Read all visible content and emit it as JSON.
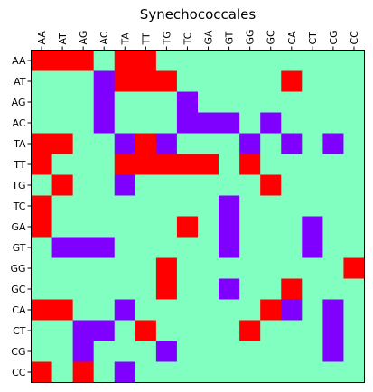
{
  "chart_data": {
    "type": "heatmap",
    "title": "Synechococcales",
    "x_categories": [
      "AA",
      "AT",
      "AG",
      "AC",
      "TA",
      "TT",
      "TG",
      "TC",
      "GA",
      "GT",
      "GG",
      "GC",
      "CA",
      "CT",
      "CG",
      "CC"
    ],
    "y_categories": [
      "AA",
      "AT",
      "AG",
      "AC",
      "TA",
      "TT",
      "TG",
      "TC",
      "GA",
      "GT",
      "GG",
      "GC",
      "CA",
      "CT",
      "CG",
      "CC"
    ],
    "palette": {
      "0": "#80FFC0",
      "1": "#FF0000",
      "2": "#8000FF"
    },
    "x_tick_position": "top",
    "grid": false,
    "values": [
      [
        1,
        1,
        1,
        0,
        1,
        1,
        0,
        0,
        0,
        0,
        0,
        0,
        0,
        0,
        0,
        0
      ],
      [
        0,
        0,
        0,
        2,
        1,
        1,
        1,
        0,
        0,
        0,
        0,
        0,
        1,
        0,
        0,
        0
      ],
      [
        0,
        0,
        0,
        2,
        0,
        0,
        0,
        2,
        0,
        0,
        0,
        0,
        0,
        0,
        0,
        0
      ],
      [
        0,
        0,
        0,
        2,
        0,
        0,
        0,
        2,
        2,
        2,
        0,
        2,
        0,
        0,
        0,
        0
      ],
      [
        1,
        1,
        0,
        0,
        2,
        1,
        2,
        0,
        0,
        0,
        2,
        0,
        2,
        0,
        2,
        0
      ],
      [
        1,
        0,
        0,
        0,
        1,
        1,
        1,
        1,
        1,
        0,
        1,
        0,
        0,
        0,
        0,
        0
      ],
      [
        0,
        1,
        0,
        0,
        2,
        0,
        0,
        0,
        0,
        0,
        0,
        1,
        0,
        0,
        0,
        0
      ],
      [
        1,
        0,
        0,
        0,
        0,
        0,
        0,
        0,
        0,
        2,
        0,
        0,
        0,
        0,
        0,
        0
      ],
      [
        1,
        0,
        0,
        0,
        0,
        0,
        0,
        1,
        0,
        2,
        0,
        0,
        0,
        2,
        0,
        0
      ],
      [
        0,
        2,
        2,
        2,
        0,
        0,
        0,
        0,
        0,
        2,
        0,
        0,
        0,
        2,
        0,
        0
      ],
      [
        0,
        0,
        0,
        0,
        0,
        0,
        1,
        0,
        0,
        0,
        0,
        0,
        0,
        0,
        0,
        1
      ],
      [
        0,
        0,
        0,
        0,
        0,
        0,
        1,
        0,
        0,
        2,
        0,
        0,
        1,
        0,
        0,
        0
      ],
      [
        1,
        1,
        0,
        0,
        2,
        0,
        0,
        0,
        0,
        0,
        0,
        1,
        2,
        0,
        2,
        0
      ],
      [
        0,
        0,
        2,
        2,
        0,
        1,
        0,
        0,
        0,
        0,
        1,
        0,
        0,
        0,
        2,
        0
      ],
      [
        0,
        0,
        2,
        0,
        0,
        0,
        2,
        0,
        0,
        0,
        0,
        0,
        0,
        0,
        2,
        0
      ],
      [
        1,
        0,
        1,
        0,
        2,
        0,
        0,
        0,
        0,
        0,
        0,
        0,
        0,
        0,
        0,
        0
      ]
    ]
  }
}
